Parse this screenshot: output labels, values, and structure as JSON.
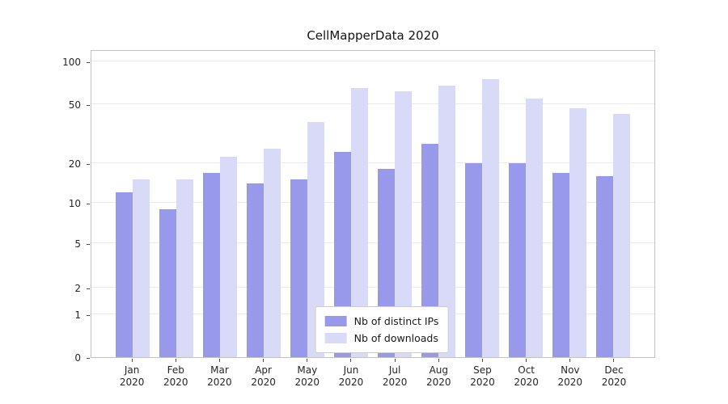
{
  "chart_data": {
    "type": "bar",
    "title": "CellMapperData 2020",
    "categories": [
      "Jan",
      "Feb",
      "Mar",
      "Apr",
      "May",
      "Jun",
      "Jul",
      "Aug",
      "Sep",
      "Oct",
      "Nov",
      "Dec"
    ],
    "year_label": "2020",
    "yscale": "symlog",
    "yticks": [
      0,
      1,
      2,
      5,
      10,
      20,
      50,
      100
    ],
    "ylim": [
      0,
      100
    ],
    "grid": "horizontal",
    "legend_position": "lower-center-inside",
    "series": [
      {
        "name": "Nb of distinct IPs",
        "color": "#9999ec",
        "values": [
          12,
          9,
          17,
          14,
          15,
          24,
          18,
          27,
          20,
          20,
          17,
          16
        ]
      },
      {
        "name": "Nb of downloads",
        "color": "#d9d9f8",
        "values": [
          15,
          15,
          22,
          25,
          38,
          65,
          62,
          68,
          75,
          55,
          47,
          43
        ]
      }
    ],
    "background_color": "#ffffff",
    "gridline_color": "#ebebeb",
    "spine_color": "#c2c2c2"
  }
}
